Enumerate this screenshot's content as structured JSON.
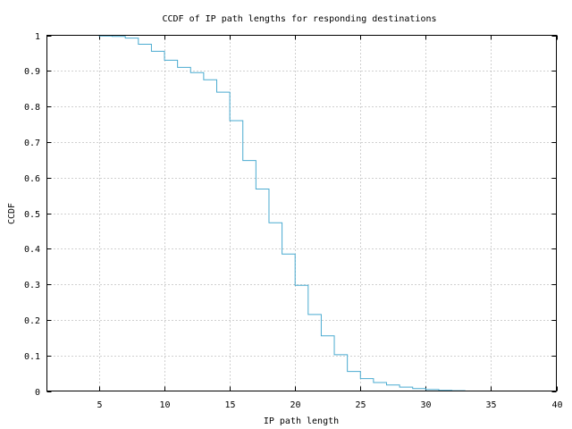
{
  "chart_data": {
    "type": "line",
    "step": true,
    "title": "CCDF of IP path lengths for responding destinations",
    "xlabel": "IP path length",
    "ylabel": "CCDF",
    "xlim": [
      1,
      40
    ],
    "ylim": [
      0,
      1
    ],
    "xticks": [
      5,
      10,
      15,
      20,
      25,
      30,
      35,
      40
    ],
    "yticks": [
      0,
      0.1,
      0.2,
      0.3,
      0.4,
      0.5,
      0.6,
      0.7,
      0.8,
      0.9,
      1
    ],
    "grid": true,
    "line_color": "#4aabd0",
    "series": [
      {
        "x": [
          4,
          5,
          6,
          7,
          8,
          9,
          10,
          11,
          12,
          13,
          14,
          15,
          16,
          17,
          18,
          19,
          20,
          21,
          22,
          23,
          24,
          25,
          26,
          27,
          28,
          29,
          30,
          31,
          32,
          33
        ],
        "y": [
          1.0,
          0.998,
          0.997,
          0.992,
          0.975,
          0.955,
          0.93,
          0.91,
          0.895,
          0.875,
          0.84,
          0.76,
          0.648,
          0.568,
          0.473,
          0.385,
          0.297,
          0.215,
          0.155,
          0.102,
          0.055,
          0.035,
          0.024,
          0.017,
          0.011,
          0.007,
          0.004,
          0.002,
          0.001,
          0.0
        ]
      }
    ]
  }
}
